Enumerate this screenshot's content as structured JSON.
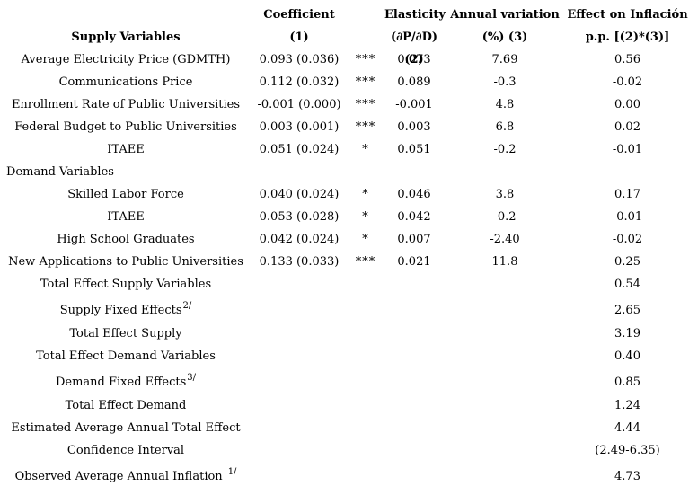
{
  "table": {
    "columns": {
      "variables": {
        "line1": "",
        "line2": "Supply Variables"
      },
      "coefficient": {
        "line1": "Coefficient",
        "line2": "(1)"
      },
      "elasticity": {
        "line1": "Elasticity",
        "line2": "(∂P/∂D) (2)"
      },
      "annual_variation": {
        "line1": "Annual variation",
        "line2": "(%) (3)"
      },
      "effect": {
        "line1": "Effect on Inflación",
        "line2": "p.p. [(2)*(3)]"
      }
    },
    "rows": [
      {
        "label": "Average Electricity Price (GDMTH)",
        "coefficient": "0.093 (0.036)",
        "stars": "***",
        "elasticity": "0.073",
        "annual_variation": "7.69",
        "effect": "0.56"
      },
      {
        "label": "Communications Price",
        "coefficient": "0.112 (0.032)",
        "stars": "***",
        "elasticity": "0.089",
        "annual_variation": "-0.3",
        "effect": "-0.02"
      },
      {
        "label": "Enrollment Rate of Public Universities",
        "coefficient": "-0.001 (0.000)",
        "stars": "***",
        "elasticity": "-0.001",
        "annual_variation": "4.8",
        "effect": "0.00"
      },
      {
        "label": "Federal Budget to Public Universities",
        "coefficient": "0.003 (0.001)",
        "stars": "***",
        "elasticity": "0.003",
        "annual_variation": "6.8",
        "effect": "0.02"
      },
      {
        "label": "ITAEE",
        "coefficient": "0.051 (0.024)",
        "stars": "*",
        "elasticity": "0.051",
        "annual_variation": "-0.2",
        "effect": "-0.01"
      },
      {
        "label": "Demand Variables"
      },
      {
        "label": "Skilled Labor Force",
        "coefficient": "0.040 (0.024)",
        "stars": "*",
        "elasticity": "0.046",
        "annual_variation": "3.8",
        "effect": "0.17"
      },
      {
        "label": "ITAEE",
        "coefficient": "0.053 (0.028)",
        "stars": "*",
        "elasticity": "0.042",
        "annual_variation": "-0.2",
        "effect": "-0.01"
      },
      {
        "label": "High School Graduates",
        "coefficient": "0.042 (0.024)",
        "stars": "*",
        "elasticity": "0.007",
        "annual_variation": "-2.40",
        "effect": "-0.02"
      },
      {
        "label": "New Applications to Public Universities",
        "coefficient": "0.133 (0.033)",
        "stars": "***",
        "elasticity": "0.021",
        "annual_variation": "11.8",
        "effect": "0.25"
      },
      {
        "label": "Total Effect Supply Variables",
        "effect": "0.54"
      },
      {
        "label": "Supply Fixed Effects",
        "label_sup": "2/",
        "effect": "2.65"
      },
      {
        "label": "Total Effect Supply",
        "effect": "3.19"
      },
      {
        "label": "Total Effect Demand Variables",
        "effect": "0.40"
      },
      {
        "label": "Demand Fixed Effects",
        "label_sup": "3/",
        "effect": "0.85"
      },
      {
        "label": "Total Effect Demand",
        "effect": "1.24"
      },
      {
        "label": "Estimated Average Annual Total Effect",
        "effect": "4.44"
      },
      {
        "label": "Confidence Interval",
        "effect": "(2.49-6.35)"
      },
      {
        "label": "Observed Average Annual Inflation",
        "label_sup": "1/",
        "effect": "4.73"
      }
    ]
  }
}
